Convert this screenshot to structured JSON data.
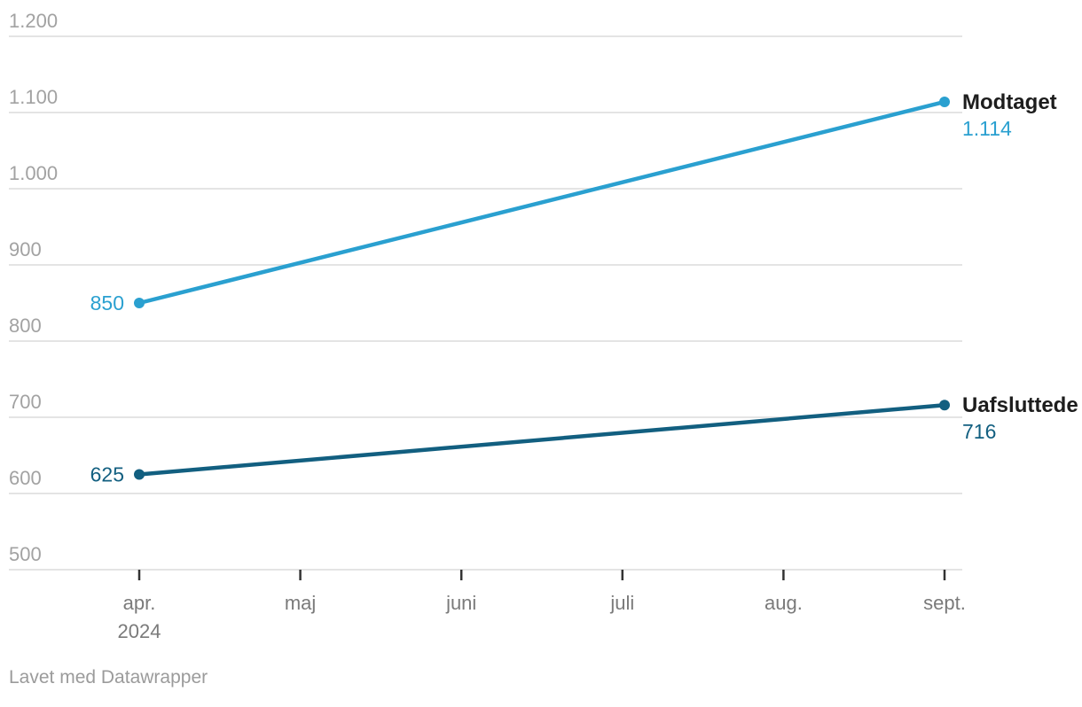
{
  "chart_data": {
    "type": "line",
    "title": "",
    "xlabel": "",
    "ylabel": "",
    "grid": true,
    "legend_position": "end-of-line direct labels",
    "x_ticks": [
      {
        "label": "apr.",
        "sublabel": "2024"
      },
      {
        "label": "maj",
        "sublabel": ""
      },
      {
        "label": "juni",
        "sublabel": ""
      },
      {
        "label": "juli",
        "sublabel": ""
      },
      {
        "label": "aug.",
        "sublabel": ""
      },
      {
        "label": "sept.",
        "sublabel": ""
      }
    ],
    "y_axis": {
      "min": 500,
      "max": 1200,
      "ticks": [
        {
          "value": 500,
          "label": "500"
        },
        {
          "value": 600,
          "label": "600"
        },
        {
          "value": 700,
          "label": "700"
        },
        {
          "value": 800,
          "label": "800"
        },
        {
          "value": 900,
          "label": "900"
        },
        {
          "value": 1000,
          "label": "1.000"
        },
        {
          "value": 1100,
          "label": "1.100"
        },
        {
          "value": 1200,
          "label": "1.200"
        }
      ]
    },
    "series": [
      {
        "name": "Modtaget",
        "color": "#2aa0d0",
        "points": [
          {
            "x": "apr. 2024",
            "x_index": 0,
            "value": 850,
            "label": "850"
          },
          {
            "x": "sept.",
            "x_index": 5,
            "value": 1114,
            "label": "1.114"
          }
        ]
      },
      {
        "name": "Uafsluttede",
        "color": "#125f80",
        "points": [
          {
            "x": "apr. 2024",
            "x_index": 0,
            "value": 625,
            "label": "625"
          },
          {
            "x": "sept.",
            "x_index": 5,
            "value": 716,
            "label": "716"
          }
        ]
      }
    ]
  },
  "colors": {
    "background": "#ffffff",
    "grid": "#e4e4e4",
    "y_label": "#a2a2a2",
    "x_label": "#7a7a7a",
    "tick_mark": "#333333",
    "series_name_text": "#1d1d1d",
    "footer_text": "#9b9b9b"
  },
  "footer": {
    "credit": "Lavet med Datawrapper"
  }
}
